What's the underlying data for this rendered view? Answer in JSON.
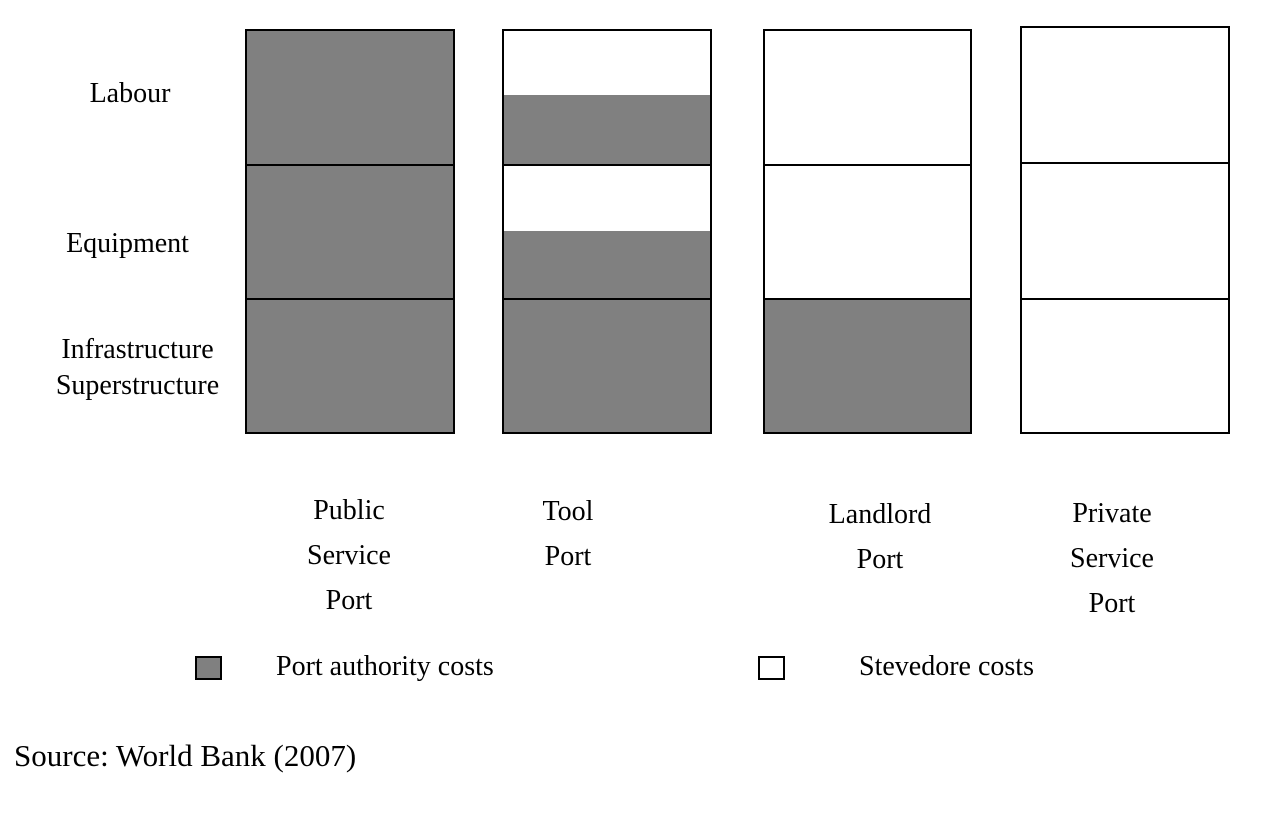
{
  "colors": {
    "port_authority": "#808080",
    "stevedore": "#ffffff",
    "border": "#000000"
  },
  "rows": {
    "labour": "Labour",
    "equipment": "Equipment",
    "infrastructure_line1": "Infrastructure",
    "infrastructure_line2": "Superstructure"
  },
  "columns": [
    {
      "label_lines": [
        "Public",
        "Service",
        "Port"
      ],
      "labour": "port_authority",
      "equipment": "port_authority",
      "infrastructure": "port_authority"
    },
    {
      "label_lines": [
        "Tool",
        "Port"
      ],
      "labour": "mixed",
      "equipment": "mixed",
      "infrastructure": "port_authority"
    },
    {
      "label_lines": [
        "Landlord",
        "Port"
      ],
      "labour": "stevedore",
      "equipment": "stevedore",
      "infrastructure": "port_authority"
    },
    {
      "label_lines": [
        "Private",
        "Service",
        "Port"
      ],
      "labour": "stevedore",
      "equipment": "stevedore",
      "infrastructure": "stevedore"
    }
  ],
  "legend": {
    "port_authority": "Port authority costs",
    "stevedore": "Stevedore costs"
  },
  "source": "Source: World Bank (2007)"
}
